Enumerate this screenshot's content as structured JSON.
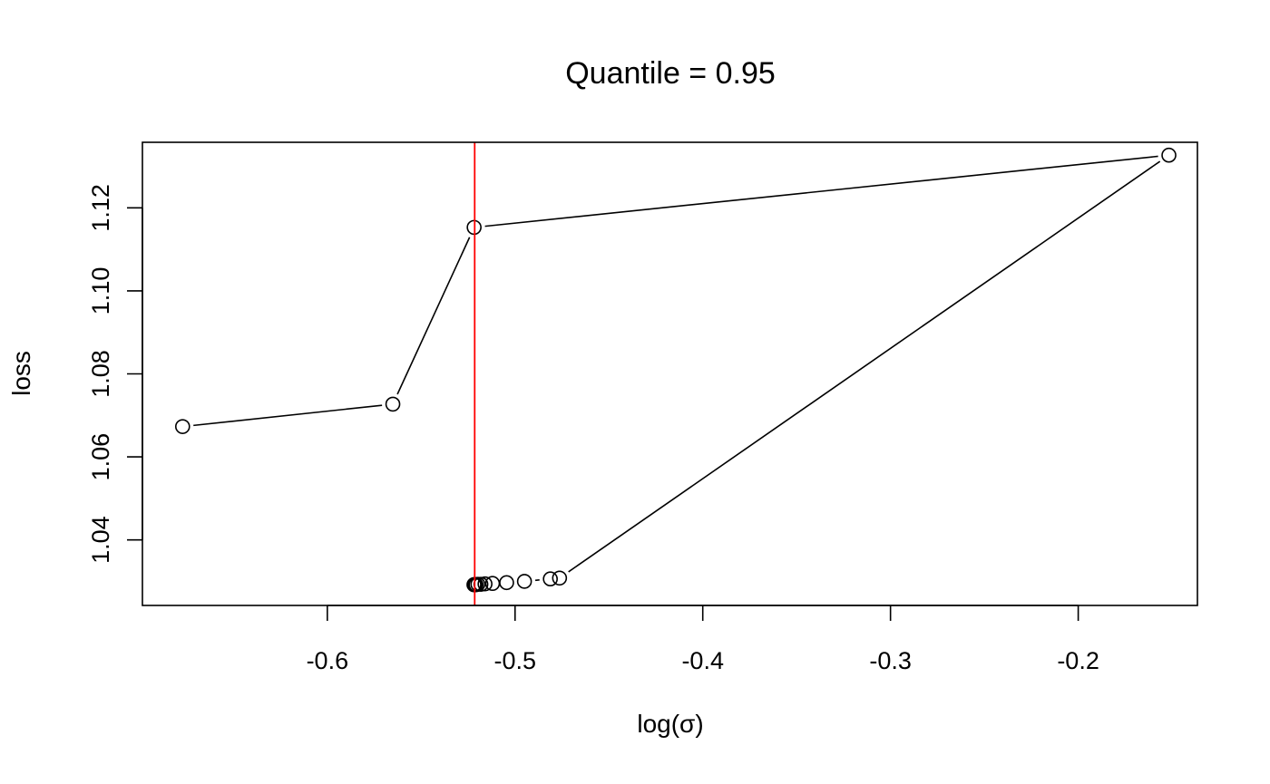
{
  "chart_data": {
    "type": "scatter",
    "title": "Quantile = 0.95",
    "xlabel": "log(σ)",
    "ylabel": "loss",
    "xlim": [
      -0.6985,
      -0.1365
    ],
    "ylim": [
      1.0242,
      1.1358
    ],
    "x_ticks": [
      -0.6,
      -0.5,
      -0.4,
      -0.3,
      -0.2
    ],
    "x_tick_labels": [
      "-0.6",
      "-0.5",
      "-0.4",
      "-0.3",
      "-0.2"
    ],
    "y_ticks": [
      1.04,
      1.06,
      1.08,
      1.1,
      1.12
    ],
    "y_tick_labels": [
      "1.04",
      "1.06",
      "1.08",
      "1.10",
      "1.12"
    ],
    "grid": false,
    "legend": "none",
    "marker": "open-circle",
    "connect": "lines",
    "series": [
      {
        "x": [
          -0.6771,
          -0.5651,
          -0.5218,
          -0.1517,
          -0.4763,
          -0.4812,
          -0.495,
          -0.5045,
          -0.512,
          -0.516,
          -0.5182,
          -0.5198,
          -0.5208,
          -0.5214,
          -0.5217,
          -0.5219
        ],
        "y": [
          1.0673,
          1.0727,
          1.1153,
          1.1327,
          1.0308,
          1.0306,
          1.03,
          1.0297,
          1.0295,
          1.0294,
          1.0293,
          1.0293,
          1.0292,
          1.0292,
          1.0292,
          1.0292
        ]
      }
    ],
    "vline": {
      "x": -0.5215,
      "color": "#ff0000"
    },
    "colors": {
      "points": "#000000",
      "lines": "#000000",
      "vline": "#ff0000",
      "frame": "#000000"
    }
  }
}
